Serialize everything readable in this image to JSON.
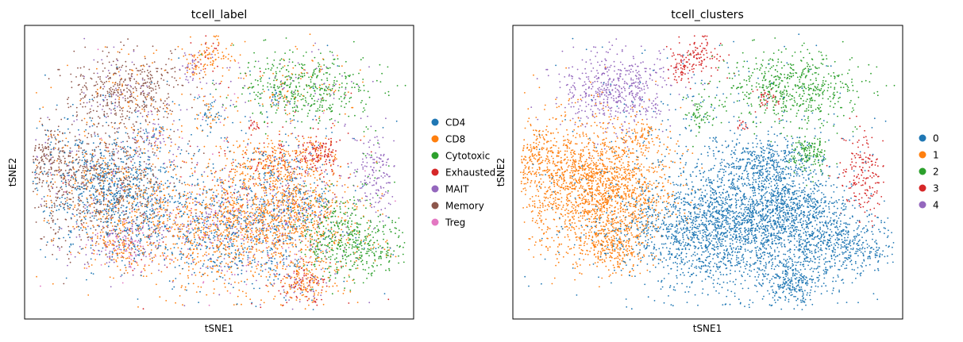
{
  "chart_data": [
    {
      "type": "scatter",
      "title": "tcell_label",
      "xlabel": "tSNE1",
      "ylabel": "tSNE2",
      "grid": false,
      "ticks": false,
      "legend_placement": "outside-right",
      "series": [
        {
          "name": "CD4",
          "color": "#1f77b4"
        },
        {
          "name": "CD8",
          "color": "#ff7f0e"
        },
        {
          "name": "Cytotoxic",
          "color": "#2ca02c"
        },
        {
          "name": "Exhausted",
          "color": "#d62728"
        },
        {
          "name": "MAIT",
          "color": "#9467bd"
        },
        {
          "name": "Memory",
          "color": "#8c564b"
        },
        {
          "name": "Treg",
          "color": "#e377c2"
        }
      ]
    },
    {
      "type": "scatter",
      "title": "tcell_clusters",
      "xlabel": "tSNE1",
      "ylabel": "tSNE2",
      "grid": false,
      "ticks": false,
      "legend_placement": "outside-right",
      "series": [
        {
          "name": "0",
          "color": "#1f77b4"
        },
        {
          "name": "1",
          "color": "#ff7f0e"
        },
        {
          "name": "2",
          "color": "#2ca02c"
        },
        {
          "name": "3",
          "color": "#d62728"
        },
        {
          "name": "4",
          "color": "#9467bd"
        }
      ]
    }
  ]
}
